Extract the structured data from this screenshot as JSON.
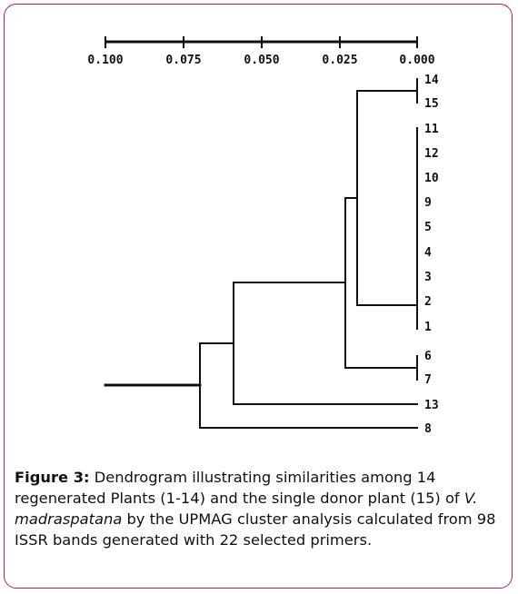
{
  "figure": {
    "scale": {
      "tick_labels": [
        "0.100",
        "0.075",
        "0.050",
        "0.025",
        "0.000"
      ],
      "tick_values": [
        0.1,
        0.075,
        0.05,
        0.025,
        0.0
      ]
    },
    "leaves": [
      "14",
      "15",
      "11",
      "12",
      "10",
      "9",
      "5",
      "4",
      "3",
      "2",
      "1",
      "6",
      "7",
      "13",
      "8"
    ],
    "caption": {
      "label": "Figure 3:",
      "text_before": " Dendrogram illustrating similarities among 14 regenerated Plants (1-14) and the single donor plant (15) of ",
      "species": "V. madraspatana",
      "text_after": " by the UPMAG cluster analysis calculated from 98 ISSR bands generated with 22 selected primers."
    }
  }
}
